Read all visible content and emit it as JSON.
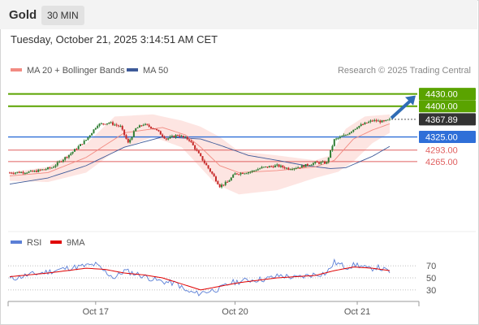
{
  "header": {
    "title": "Gold",
    "timeframe": "30 MIN"
  },
  "timestamp": "Tuesday, October 21, 2025 3:14:51 AM CET",
  "credit": "Research © 2025 Trading Central",
  "legend": [
    {
      "label": "MA 20 + Bollinger Bands",
      "color": "#f28b82"
    },
    {
      "label": "MA 50",
      "color": "#3d5a99"
    }
  ],
  "rsi_legend": [
    {
      "label": "RSI",
      "color": "#5b7fd6"
    },
    {
      "label": "9MA",
      "color": "#e00000"
    }
  ],
  "colors": {
    "target": "#5aa300",
    "pivot": "#2f6fd8",
    "support": "#e06060",
    "current": "#333333",
    "arrow": "#2f6cb5",
    "candle_up": "#2e7d32",
    "candle_down": "#c62828",
    "band_fill": "#fde0dd",
    "ma20": "#f28b82",
    "ma50": "#3d5a99",
    "rsi": "#5b7fd6",
    "rsi_ma": "#e00000"
  },
  "chart_data": {
    "type": "candlestick",
    "ylim": [
      4120,
      4445
    ],
    "levels": [
      {
        "label": "4430.00",
        "value": 4430,
        "role": "target"
      },
      {
        "label": "4400.00",
        "value": 4400,
        "role": "target"
      },
      {
        "label": "4367.89",
        "value": 4367.89,
        "role": "current"
      },
      {
        "label": "4325.00",
        "value": 4325,
        "role": "pivot"
      },
      {
        "label": "4293.00",
        "value": 4293,
        "role": "support"
      },
      {
        "label": "4265.00",
        "value": 4265,
        "role": "support"
      }
    ],
    "x_ticks": [
      "Oct 17",
      "Oct 20",
      "Oct 21"
    ],
    "x_tick_index": [
      45,
      118,
      182
    ],
    "n_bars": 200,
    "arrow_target": 4430,
    "anchors": {
      "price": [
        [
          0,
          4238
        ],
        [
          12,
          4240
        ],
        [
          22,
          4250
        ],
        [
          32,
          4285
        ],
        [
          40,
          4318
        ],
        [
          46,
          4355
        ],
        [
          52,
          4360
        ],
        [
          58,
          4350
        ],
        [
          62,
          4310
        ],
        [
          66,
          4345
        ],
        [
          70,
          4356
        ],
        [
          76,
          4345
        ],
        [
          82,
          4320
        ],
        [
          88,
          4330
        ],
        [
          94,
          4318
        ],
        [
          98,
          4290
        ],
        [
          102,
          4262
        ],
        [
          106,
          4235
        ],
        [
          110,
          4205
        ],
        [
          114,
          4215
        ],
        [
          118,
          4235
        ],
        [
          126,
          4240
        ],
        [
          132,
          4250
        ],
        [
          140,
          4255
        ],
        [
          146,
          4248
        ],
        [
          152,
          4252
        ],
        [
          160,
          4262
        ],
        [
          166,
          4262
        ],
        [
          170,
          4318
        ],
        [
          176,
          4330
        ],
        [
          182,
          4350
        ],
        [
          190,
          4365
        ],
        [
          196,
          4362
        ],
        [
          199,
          4367
        ]
      ],
      "ma20": [
        [
          0,
          4230
        ],
        [
          20,
          4238
        ],
        [
          40,
          4275
        ],
        [
          60,
          4335
        ],
        [
          80,
          4348
        ],
        [
          92,
          4330
        ],
        [
          100,
          4300
        ],
        [
          110,
          4255
        ],
        [
          120,
          4238
        ],
        [
          140,
          4243
        ],
        [
          160,
          4252
        ],
        [
          170,
          4268
        ],
        [
          180,
          4320
        ],
        [
          190,
          4342
        ],
        [
          199,
          4357
        ]
      ],
      "band_upper": [
        [
          0,
          4238
        ],
        [
          20,
          4252
        ],
        [
          40,
          4308
        ],
        [
          55,
          4375
        ],
        [
          75,
          4380
        ],
        [
          90,
          4365
        ],
        [
          100,
          4350
        ],
        [
          110,
          4325
        ],
        [
          120,
          4290
        ],
        [
          140,
          4280
        ],
        [
          160,
          4268
        ],
        [
          168,
          4280
        ],
        [
          176,
          4345
        ],
        [
          186,
          4375
        ],
        [
          199,
          4380
        ]
      ],
      "band_lower": [
        [
          0,
          4218
        ],
        [
          20,
          4215
        ],
        [
          40,
          4238
        ],
        [
          55,
          4290
        ],
        [
          75,
          4325
        ],
        [
          90,
          4300
        ],
        [
          100,
          4250
        ],
        [
          108,
          4210
        ],
        [
          120,
          4185
        ],
        [
          140,
          4195
        ],
        [
          160,
          4225
        ],
        [
          172,
          4240
        ],
        [
          180,
          4265
        ],
        [
          190,
          4310
        ],
        [
          199,
          4335
        ]
      ],
      "ma50": [
        [
          0,
          4210
        ],
        [
          20,
          4225
        ],
        [
          40,
          4255
        ],
        [
          60,
          4300
        ],
        [
          80,
          4325
        ],
        [
          100,
          4320
        ],
        [
          110,
          4305
        ],
        [
          125,
          4280
        ],
        [
          140,
          4268
        ],
        [
          155,
          4255
        ],
        [
          168,
          4248
        ],
        [
          176,
          4250
        ],
        [
          190,
          4278
        ],
        [
          199,
          4302
        ]
      ],
      "rsi": [
        [
          0,
          48
        ],
        [
          10,
          55
        ],
        [
          20,
          60
        ],
        [
          30,
          66
        ],
        [
          40,
          70
        ],
        [
          45,
          72
        ],
        [
          50,
          60
        ],
        [
          55,
          50
        ],
        [
          60,
          62
        ],
        [
          68,
          55
        ],
        [
          78,
          45
        ],
        [
          88,
          40
        ],
        [
          92,
          28
        ],
        [
          98,
          24
        ],
        [
          104,
          28
        ],
        [
          110,
          32
        ],
        [
          116,
          42
        ],
        [
          124,
          46
        ],
        [
          134,
          48
        ],
        [
          142,
          54
        ],
        [
          150,
          50
        ],
        [
          158,
          55
        ],
        [
          166,
          58
        ],
        [
          170,
          76
        ],
        [
          176,
          68
        ],
        [
          182,
          72
        ],
        [
          188,
          64
        ],
        [
          192,
          68
        ],
        [
          199,
          60
        ]
      ],
      "rsi_ma": [
        [
          0,
          52
        ],
        [
          20,
          58
        ],
        [
          40,
          66
        ],
        [
          50,
          64
        ],
        [
          60,
          58
        ],
        [
          70,
          55
        ],
        [
          80,
          50
        ],
        [
          90,
          40
        ],
        [
          100,
          30
        ],
        [
          110,
          36
        ],
        [
          120,
          42
        ],
        [
          130,
          46
        ],
        [
          140,
          50
        ],
        [
          150,
          52
        ],
        [
          160,
          54
        ],
        [
          170,
          62
        ],
        [
          180,
          68
        ],
        [
          190,
          66
        ],
        [
          199,
          62
        ]
      ]
    },
    "rsi_ticks": [
      70,
      50,
      30
    ],
    "rsi_lim": [
      15,
      85
    ]
  }
}
